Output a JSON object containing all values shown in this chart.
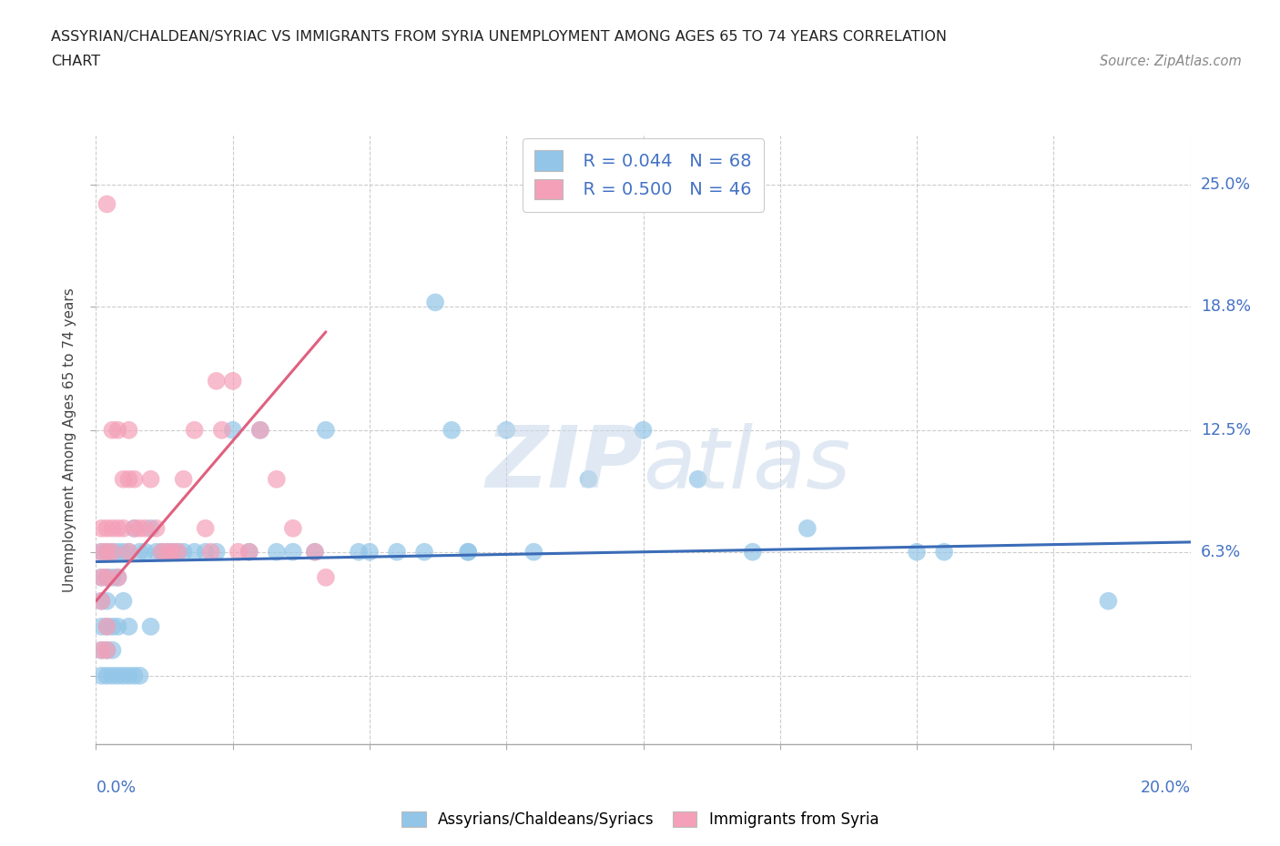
{
  "title_line1": "ASSYRIAN/CHALDEAN/SYRIAC VS IMMIGRANTS FROM SYRIA UNEMPLOYMENT AMONG AGES 65 TO 74 YEARS CORRELATION",
  "title_line2": "CHART",
  "source_text": "Source: ZipAtlas.com",
  "ylabel": "Unemployment Among Ages 65 to 74 years",
  "xmin": 0.0,
  "xmax": 0.2,
  "ymin": -0.035,
  "ymax": 0.275,
  "legend_r1": "R = 0.044",
  "legend_n1": "N = 68",
  "legend_r2": "R = 0.500",
  "legend_n2": "N = 46",
  "color_blue": "#92C5E8",
  "color_pink": "#F4A0B8",
  "color_blue_line": "#3B6CB7",
  "color_pink_line": "#E06080",
  "color_blue_text": "#4472C4",
  "ytick_positions": [
    0.0,
    0.063,
    0.125,
    0.188,
    0.25
  ],
  "ytick_labels": [
    "",
    "6.3%",
    "12.5%",
    "18.8%",
    "25.0%"
  ],
  "xtick_positions": [
    0.0,
    0.025,
    0.05,
    0.075,
    0.1,
    0.125,
    0.15,
    0.175,
    0.2
  ],
  "blue_scatter_x": [
    0.001,
    0.001,
    0.001,
    0.001,
    0.001,
    0.001,
    0.002,
    0.002,
    0.002,
    0.002,
    0.002,
    0.002,
    0.003,
    0.003,
    0.003,
    0.003,
    0.003,
    0.004,
    0.004,
    0.004,
    0.004,
    0.005,
    0.005,
    0.005,
    0.006,
    0.006,
    0.006,
    0.007,
    0.007,
    0.008,
    0.008,
    0.009,
    0.01,
    0.01,
    0.011,
    0.012,
    0.013,
    0.014,
    0.015,
    0.016,
    0.018,
    0.02,
    0.022,
    0.025,
    0.028,
    0.03,
    0.033,
    0.036,
    0.04,
    0.042,
    0.048,
    0.05,
    0.055,
    0.06,
    0.065,
    0.068,
    0.075,
    0.08,
    0.09,
    0.1,
    0.11,
    0.12,
    0.13,
    0.15,
    0.155,
    0.185,
    0.062,
    0.068
  ],
  "blue_scatter_y": [
    0.063,
    0.05,
    0.038,
    0.025,
    0.013,
    0.0,
    0.063,
    0.05,
    0.038,
    0.025,
    0.013,
    0.0,
    0.063,
    0.05,
    0.025,
    0.013,
    0.0,
    0.063,
    0.05,
    0.025,
    0.0,
    0.063,
    0.038,
    0.0,
    0.063,
    0.025,
    0.0,
    0.075,
    0.0,
    0.063,
    0.0,
    0.063,
    0.075,
    0.025,
    0.063,
    0.063,
    0.063,
    0.063,
    0.063,
    0.063,
    0.063,
    0.063,
    0.063,
    0.125,
    0.063,
    0.125,
    0.063,
    0.063,
    0.063,
    0.125,
    0.063,
    0.063,
    0.063,
    0.063,
    0.125,
    0.063,
    0.125,
    0.063,
    0.1,
    0.125,
    0.1,
    0.063,
    0.075,
    0.063,
    0.063,
    0.038,
    0.19,
    0.063
  ],
  "pink_scatter_x": [
    0.001,
    0.001,
    0.001,
    0.001,
    0.001,
    0.002,
    0.002,
    0.002,
    0.002,
    0.002,
    0.003,
    0.003,
    0.003,
    0.004,
    0.004,
    0.004,
    0.005,
    0.005,
    0.006,
    0.006,
    0.006,
    0.007,
    0.007,
    0.008,
    0.009,
    0.01,
    0.011,
    0.012,
    0.013,
    0.014,
    0.015,
    0.016,
    0.018,
    0.02,
    0.021,
    0.023,
    0.025,
    0.028,
    0.03,
    0.033,
    0.036,
    0.04,
    0.042,
    0.022,
    0.026,
    0.002
  ],
  "pink_scatter_y": [
    0.075,
    0.063,
    0.05,
    0.038,
    0.013,
    0.075,
    0.063,
    0.05,
    0.025,
    0.013,
    0.125,
    0.075,
    0.063,
    0.125,
    0.075,
    0.05,
    0.1,
    0.075,
    0.125,
    0.1,
    0.063,
    0.1,
    0.075,
    0.075,
    0.075,
    0.1,
    0.075,
    0.063,
    0.063,
    0.063,
    0.063,
    0.1,
    0.125,
    0.075,
    0.063,
    0.125,
    0.15,
    0.063,
    0.125,
    0.1,
    0.075,
    0.063,
    0.05,
    0.15,
    0.063,
    0.24
  ],
  "blue_trend_x": [
    0.0,
    0.2
  ],
  "blue_trend_y": [
    0.058,
    0.068
  ],
  "pink_trend_x": [
    0.0,
    0.042
  ],
  "pink_trend_y": [
    0.038,
    0.175
  ]
}
